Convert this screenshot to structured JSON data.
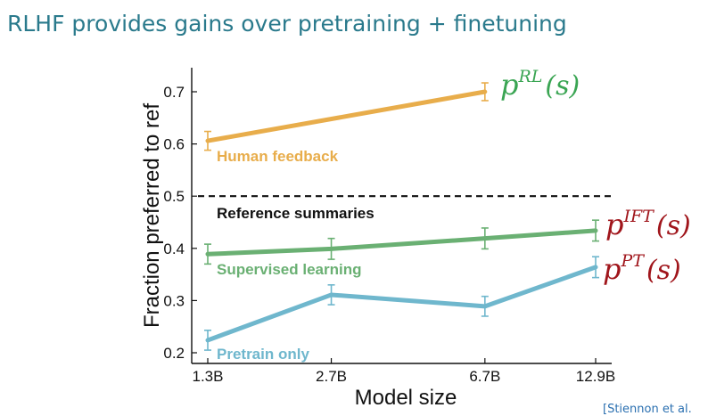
{
  "slide": {
    "title": "RLHF provides gains over pretraining + finetuning",
    "citation": "[Stiennon et al."
  },
  "colors": {
    "human_feedback": "#e8ad4b",
    "supervised": "#6ab073",
    "pretrain": "#6fb7cd",
    "reference": "#111111",
    "rl_math": "#3aa553",
    "ift_math": "#a0151b",
    "pt_math": "#a0151b"
  },
  "math_labels": {
    "rl": {
      "base": "p",
      "sup": "RL",
      "arg": "(s)"
    },
    "ift": {
      "base": "p",
      "sup": "IFT",
      "arg": "(s)"
    },
    "pt": {
      "base": "p",
      "sup": "PT",
      "arg": "(s)"
    }
  },
  "chart_data": {
    "type": "line",
    "xlabel": "Model size",
    "ylabel": "Fraction preferred to ref",
    "categories": [
      "1.3B",
      "2.7B",
      "6.7B",
      "12.9B"
    ],
    "x_params_billion": [
      1.3,
      2.7,
      6.7,
      12.9
    ],
    "x_scale": "log",
    "ylim": [
      0.18,
      0.75
    ],
    "yticks": [
      0.2,
      0.3,
      0.4,
      0.5,
      0.6,
      0.7
    ],
    "ytick_labels": [
      "0.2",
      "0.3",
      "0.4",
      "0.5",
      "0.6",
      "0.7"
    ],
    "reference": {
      "name": "Reference summaries",
      "value": 0.5
    },
    "series": [
      {
        "name": "Human feedback",
        "color_key": "human_feedback",
        "x": [
          1.3,
          6.7
        ],
        "values": [
          0.606,
          0.7
        ],
        "errors": [
          0.018,
          0.017
        ]
      },
      {
        "name": "Supervised learning",
        "color_key": "supervised",
        "x": [
          1.3,
          2.7,
          6.7,
          12.9
        ],
        "values": [
          0.389,
          0.399,
          0.419,
          0.434
        ],
        "errors": [
          0.019,
          0.02,
          0.02,
          0.02
        ]
      },
      {
        "name": "Pretrain only",
        "color_key": "pretrain",
        "x": [
          1.3,
          2.7,
          6.7,
          12.9
        ],
        "values": [
          0.224,
          0.311,
          0.289,
          0.364
        ],
        "errors": [
          0.019,
          0.019,
          0.019,
          0.02
        ]
      }
    ]
  }
}
